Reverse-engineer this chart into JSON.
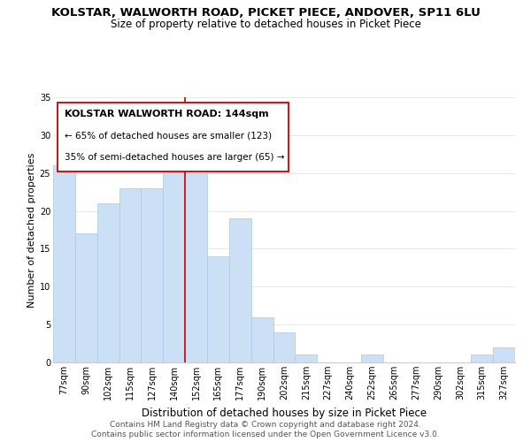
{
  "title": "KOLSTAR, WALWORTH ROAD, PICKET PIECE, ANDOVER, SP11 6LU",
  "subtitle": "Size of property relative to detached houses in Picket Piece",
  "xlabel": "Distribution of detached houses by size in Picket Piece",
  "ylabel": "Number of detached properties",
  "categories": [
    "77sqm",
    "90sqm",
    "102sqm",
    "115sqm",
    "127sqm",
    "140sqm",
    "152sqm",
    "165sqm",
    "177sqm",
    "190sqm",
    "202sqm",
    "215sqm",
    "227sqm",
    "240sqm",
    "252sqm",
    "265sqm",
    "277sqm",
    "290sqm",
    "302sqm",
    "315sqm",
    "327sqm"
  ],
  "values": [
    26,
    17,
    21,
    23,
    23,
    27,
    25,
    14,
    19,
    6,
    4,
    1,
    0,
    0,
    1,
    0,
    0,
    0,
    0,
    1,
    2
  ],
  "bar_color": "#cce0f5",
  "bar_edge_color": "#aac8e8",
  "grid_color": "#e8e8e8",
  "vline_index": 5,
  "vline_color": "#cc0000",
  "annotation_title": "KOLSTAR WALWORTH ROAD: 144sqm",
  "annotation_line1": "← 65% of detached houses are smaller (123)",
  "annotation_line2": "35% of semi-detached houses are larger (65) →",
  "annotation_box_color": "#ffffff",
  "annotation_box_edge": "#cc0000",
  "ylim": [
    0,
    35
  ],
  "yticks": [
    0,
    5,
    10,
    15,
    20,
    25,
    30,
    35
  ],
  "footer1": "Contains HM Land Registry data © Crown copyright and database right 2024.",
  "footer2": "Contains public sector information licensed under the Open Government Licence v3.0.",
  "bg_color": "#ffffff",
  "title_fontsize": 9.5,
  "subtitle_fontsize": 8.5,
  "xlabel_fontsize": 8.5,
  "ylabel_fontsize": 8,
  "tick_fontsize": 7,
  "annotation_title_fontsize": 8,
  "annotation_fontsize": 7.5,
  "footer_fontsize": 6.5
}
